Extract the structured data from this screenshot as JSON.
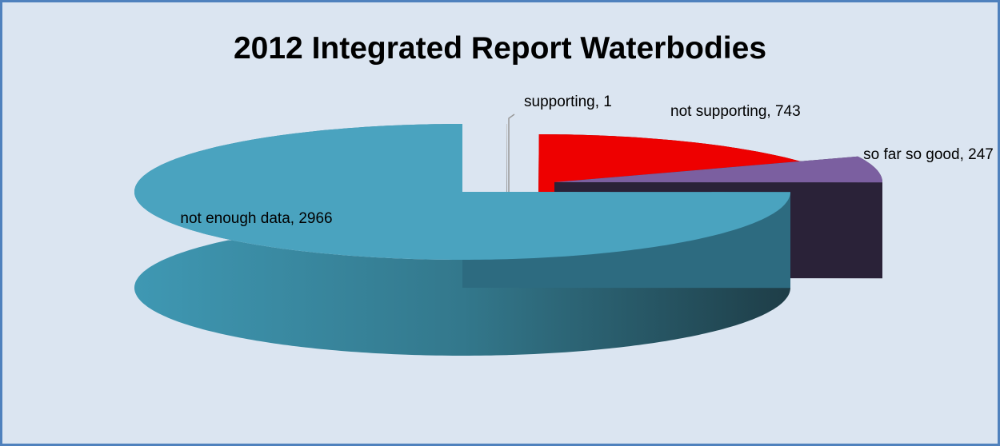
{
  "chart_data": {
    "type": "pie3d",
    "title": "2012 Integrated Report Waterbodies",
    "labels": [
      "supporting, 1",
      "not supporting, 743",
      "so far so good, 247",
      "not enough data, 2966"
    ],
    "values": [
      1,
      743,
      247,
      2966
    ],
    "colors": [
      "#c8c8c8",
      "#ee0000",
      "#7b5fa0",
      "#4aa3bf"
    ]
  }
}
